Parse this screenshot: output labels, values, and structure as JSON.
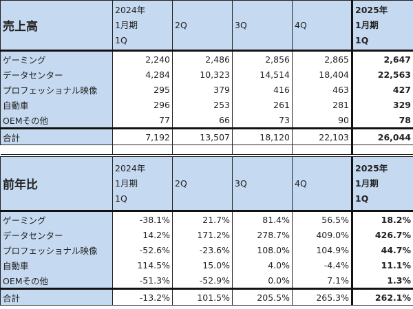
{
  "columns": {
    "q1_2024": [
      "2024年",
      "1月期",
      "1Q"
    ],
    "q2": "2Q",
    "q3": "3Q",
    "q4": "4Q",
    "q1_2025": [
      "2025年",
      "1月期",
      "1Q"
    ]
  },
  "revenue": {
    "title": "売上高",
    "rows": [
      {
        "label": "ゲーミング",
        "values": [
          "2,240",
          "2,486",
          "2,856",
          "2,865",
          "2,647"
        ]
      },
      {
        "label": "データセンター",
        "values": [
          "4,284",
          "10,323",
          "14,514",
          "18,404",
          "22,563"
        ]
      },
      {
        "label": "プロフェッショナル映像",
        "values": [
          "295",
          "379",
          "416",
          "463",
          "427"
        ]
      },
      {
        "label": "自動車",
        "values": [
          "296",
          "253",
          "261",
          "281",
          "329"
        ]
      },
      {
        "label": "OEMその他",
        "values": [
          "77",
          "66",
          "73",
          "90",
          "78"
        ]
      }
    ],
    "total": {
      "label": "合計",
      "values": [
        "7,192",
        "13,507",
        "18,120",
        "22,103",
        "26,044"
      ]
    }
  },
  "yoy": {
    "title": "前年比",
    "rows": [
      {
        "label": "ゲーミング",
        "values": [
          "-38.1%",
          "21.7%",
          "81.4%",
          "56.5%",
          "18.2%"
        ]
      },
      {
        "label": "データセンター",
        "values": [
          "14.2%",
          "171.2%",
          "278.7%",
          "409.0%",
          "426.7%"
        ]
      },
      {
        "label": "プロフェッショナル映像",
        "values": [
          "-52.6%",
          "-23.6%",
          "108.0%",
          "104.9%",
          "44.7%"
        ]
      },
      {
        "label": "自動車",
        "values": [
          "114.5%",
          "15.0%",
          "4.0%",
          "-4.4%",
          "11.1%"
        ]
      },
      {
        "label": "OEMその他",
        "values": [
          "-51.3%",
          "-52.9%",
          "0.0%",
          "7.1%",
          "1.3%"
        ]
      }
    ],
    "total": {
      "label": "合計",
      "values": [
        "-13.2%",
        "101.5%",
        "205.5%",
        "265.3%",
        "262.1%"
      ]
    }
  }
}
